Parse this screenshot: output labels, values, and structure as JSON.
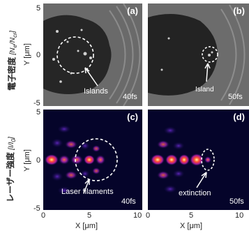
{
  "panels": {
    "a": {
      "label": "(a)",
      "annotation": "Islands",
      "time": "40fs"
    },
    "b": {
      "label": "(b)",
      "annotation": "Island",
      "time": "50fs"
    },
    "c": {
      "label": "(c)",
      "annotation": "Laser filaments",
      "time": "40fs"
    },
    "d": {
      "label": "(d)",
      "annotation": "extinction",
      "time": "50fs"
    }
  },
  "axes": {
    "y_label": "Y [μm]",
    "x_label": "X [μm]",
    "y_ticks": [
      "5",
      "0",
      "-5"
    ],
    "x_ticks_left": [
      "0",
      "5",
      "10"
    ],
    "x_ticks_right": [
      "0",
      "5",
      "10"
    ]
  },
  "row_titles": {
    "top_main": "電子密度",
    "top_unit": "[N",
    "top_sub": "e",
    "top_unit2": "/N",
    "top_sub2": "cr",
    "top_unit3": "]",
    "bottom_main": "レーザー強度",
    "bottom_unit": "[I/I",
    "bottom_sub": "0",
    "bottom_unit2": "]"
  }
}
